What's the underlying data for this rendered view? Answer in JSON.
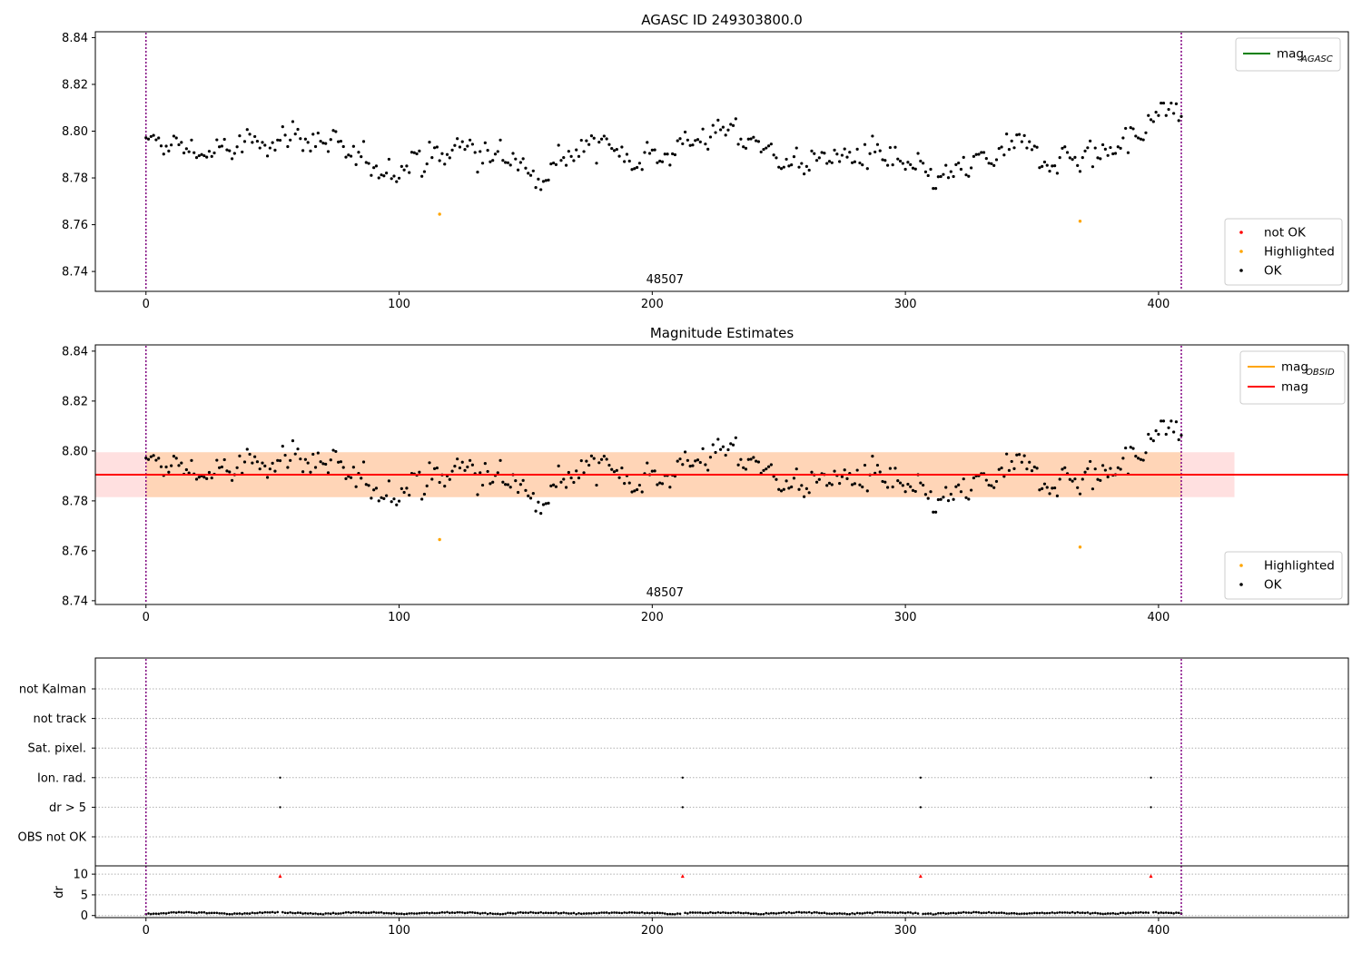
{
  "chart_data": [
    {
      "type": "scatter",
      "title": "AGASC ID 249303800.0",
      "xlim": [
        -20,
        475
      ],
      "ylim": [
        8.7315,
        8.8425
      ],
      "xticks": [
        0,
        100,
        200,
        300,
        400
      ],
      "yticks": [
        8.74,
        8.76,
        8.78,
        8.8,
        8.82,
        8.84
      ],
      "ytick_labels": [
        "8.74",
        "8.76",
        "8.78",
        "8.80",
        "8.82",
        "8.84"
      ],
      "obsid_boundaries": [
        0,
        409
      ],
      "obsid_label": "48507",
      "obsid_label_x": 205,
      "lines_legend": [
        {
          "name": "mag",
          "subscript": "AGASC",
          "color": "#008000"
        }
      ],
      "points_legend": [
        {
          "name": "not OK",
          "color": "#ff0000"
        },
        {
          "name": "Highlighted",
          "color": "#ffa500"
        },
        {
          "name": "OK",
          "color": "#000000"
        }
      ],
      "legend_lines_location": "upper right",
      "legend_points_location": "lower right",
      "highlighted_points": [
        {
          "x": 116,
          "y": 8.7645
        },
        {
          "x": 369,
          "y": 8.7615
        }
      ],
      "ok_series_length": 410,
      "ok_series_range": [
        8.768,
        8.812
      ]
    },
    {
      "type": "scatter",
      "title": "Magnitude Estimates",
      "xlim": [
        -20,
        475
      ],
      "ylim": [
        8.7385,
        8.8425
      ],
      "xticks": [
        0,
        100,
        200,
        300,
        400
      ],
      "yticks": [
        8.74,
        8.76,
        8.78,
        8.8,
        8.82,
        8.84
      ],
      "ytick_labels": [
        "8.74",
        "8.76",
        "8.78",
        "8.80",
        "8.82",
        "8.84"
      ],
      "obsid_boundaries": [
        0,
        409
      ],
      "obsid_label": "48507",
      "obsid_label_x": 205,
      "mag": 8.7905,
      "mag_band": {
        "x": [
          -20,
          430
        ],
        "y": [
          8.7815,
          8.7995
        ]
      },
      "mag_obsid": 8.7905,
      "mag_obsid_band": {
        "x": [
          0,
          409
        ],
        "y": [
          8.7815,
          8.7995
        ]
      },
      "lines_legend": [
        {
          "name": "mag",
          "subscript": "OBSID",
          "color": "#ffa500"
        },
        {
          "name": "mag",
          "subscript": "",
          "color": "#ff0000"
        }
      ],
      "points_legend": [
        {
          "name": "Highlighted",
          "color": "#ffa500"
        },
        {
          "name": "OK",
          "color": "#000000"
        }
      ],
      "legend_lines_location": "upper right",
      "legend_points_location": "lower right",
      "highlighted_points": [
        {
          "x": 116,
          "y": 8.7645
        },
        {
          "x": 369,
          "y": 8.7615
        }
      ]
    },
    {
      "type": "scatter",
      "title": "",
      "xlim": [
        -20,
        475
      ],
      "xticks": [
        0,
        100,
        200,
        300,
        400
      ],
      "obsid_boundaries": [
        0,
        409
      ],
      "flag_rows": [
        "not Kalman",
        "not track",
        "Sat. pixel.",
        "Ion. rad.",
        "dr > 5",
        "OBS not OK"
      ],
      "flag_points": [
        {
          "flag": "Ion. rad.",
          "x": [
            53,
            212,
            306,
            397
          ]
        },
        {
          "flag": "dr > 5",
          "x": [
            53,
            212,
            306,
            397
          ]
        }
      ],
      "dr_ylabel": "dr",
      "dr_ylim": [
        -0.5,
        12
      ],
      "dr_yticks": [
        0,
        5,
        10
      ],
      "dr_ytick_labels": [
        "0",
        "5",
        "10"
      ],
      "dr_outliers": {
        "x": [
          53,
          212,
          306,
          397
        ],
        "y": 10,
        "color": "#ff0000"
      }
    }
  ]
}
